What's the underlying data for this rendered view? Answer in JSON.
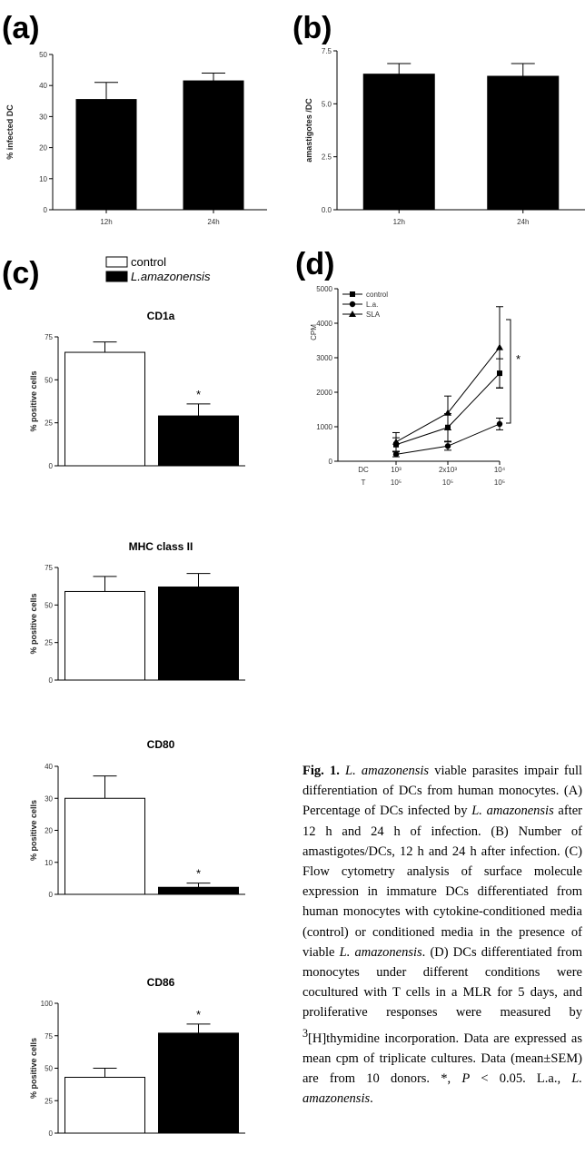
{
  "panels": {
    "a": {
      "letter": "(a)"
    },
    "b": {
      "letter": "(b)"
    },
    "c": {
      "letter": "(c)"
    },
    "d": {
      "letter": "(d)"
    }
  },
  "legend_c": {
    "control": "control",
    "treated": "L.amazonensis"
  },
  "chart_data": [
    {
      "id": "a",
      "type": "bar",
      "title": "",
      "xlabel": "",
      "ylabel": "% infected DC",
      "categories": [
        "12h",
        "24h"
      ],
      "values": [
        35.5,
        41.5
      ],
      "errors": [
        5.5,
        2.5
      ],
      "ylim": [
        0,
        50
      ],
      "yticks": [
        "0",
        "10",
        "20",
        "30",
        "40",
        "50"
      ],
      "bar_colors": [
        "#000000",
        "#000000"
      ],
      "stars": [
        "",
        ""
      ]
    },
    {
      "id": "b",
      "type": "bar",
      "title": "",
      "xlabel": "",
      "ylabel": "amastigotes /DC",
      "categories": [
        "12h",
        "24h"
      ],
      "values": [
        6.4,
        6.3
      ],
      "errors": [
        0.5,
        0.6
      ],
      "ylim": [
        0,
        7.5
      ],
      "yticks": [
        "0.0",
        "2.5",
        "5.0",
        "7.5"
      ],
      "bar_colors": [
        "#000000",
        "#000000"
      ],
      "stars": [
        "",
        ""
      ]
    },
    {
      "id": "c1",
      "type": "bar",
      "title": "CD1a",
      "xlabel": "",
      "ylabel": "% positive cells",
      "categories": [
        "control",
        "L.amazonensis"
      ],
      "values": [
        66,
        29
      ],
      "errors": [
        6,
        7
      ],
      "ylim": [
        0,
        75
      ],
      "yticks": [
        "0",
        "25",
        "50",
        "75"
      ],
      "bar_colors": [
        "#ffffff",
        "#000000"
      ],
      "stars": [
        "",
        "*"
      ]
    },
    {
      "id": "c2",
      "type": "bar",
      "title": "MHC class II",
      "xlabel": "",
      "ylabel": "% positive cells",
      "categories": [
        "control",
        "L.amazonensis"
      ],
      "values": [
        59,
        62
      ],
      "errors": [
        10,
        9
      ],
      "ylim": [
        0,
        75
      ],
      "yticks": [
        "0",
        "25",
        "50",
        "75"
      ],
      "bar_colors": [
        "#ffffff",
        "#000000"
      ],
      "stars": [
        "",
        ""
      ]
    },
    {
      "id": "c3",
      "type": "bar",
      "title": "CD80",
      "xlabel": "",
      "ylabel": "% positive cells",
      "categories": [
        "control",
        "L.amazonensis"
      ],
      "values": [
        30,
        2.2
      ],
      "errors": [
        7,
        1.3
      ],
      "ylim": [
        0,
        40
      ],
      "yticks": [
        "0",
        "10",
        "20",
        "30",
        "40"
      ],
      "bar_colors": [
        "#ffffff",
        "#000000"
      ],
      "stars": [
        "",
        "*"
      ]
    },
    {
      "id": "c4",
      "type": "bar",
      "title": "CD86",
      "xlabel": "",
      "ylabel": "% positive cells",
      "categories": [
        "control",
        "L.amazonensis"
      ],
      "values": [
        43,
        77
      ],
      "errors": [
        7,
        7
      ],
      "ylim": [
        0,
        100
      ],
      "yticks": [
        "0",
        "25",
        "50",
        "75",
        "100"
      ],
      "bar_colors": [
        "#ffffff",
        "#000000"
      ],
      "stars": [
        "",
        "*"
      ]
    },
    {
      "id": "d",
      "type": "line",
      "title": "",
      "xlabel": "",
      "ylabel": "CPM",
      "x_dc": [
        "10³",
        "2x10³",
        "10⁴"
      ],
      "x_t": [
        "10⁵",
        "10⁵",
        "10⁵"
      ],
      "x_row_labels": [
        "DC",
        "T"
      ],
      "ylim": [
        0,
        5000
      ],
      "yticks": [
        "0",
        "1000",
        "2000",
        "3000",
        "4000",
        "5000"
      ],
      "legend": "top-left",
      "series": [
        {
          "name": "control",
          "marker": "square",
          "values": [
            480,
            980,
            2550
          ],
          "errors": [
            200,
            400,
            420
          ]
        },
        {
          "name": "L.a.",
          "marker": "circle",
          "values": [
            200,
            440,
            1080
          ],
          "errors": [
            70,
            120,
            170
          ]
        },
        {
          "name": "SLA",
          "marker": "triangle",
          "values": [
            560,
            1400,
            3300
          ],
          "errors": [
            270,
            490,
            1180
          ]
        }
      ],
      "significance": "*"
    }
  ],
  "caption": {
    "fig": "Fig. 1.",
    "sp1": "L. amazonensis",
    "t1": " viable parasites impair full differentiation of DCs from human monocytes. (A) Percentage of DCs infected by ",
    "sp2": "L. amazonensis",
    "t2": " after 12 h and 24 h of infection. (B) Number of amastigotes/DCs, 12 h and 24 h after infection. (C) Flow cytometry analysis of surface molecule expression in immature DCs differentiated from human monocytes with cytokine-conditioned media (control) or conditioned media in the presence of viable ",
    "sp3": "L. amazonensis",
    "t3": ". (D) DCs differentiated from monocytes under different conditions were cocultured with T cells in a MLR for 5 days, and proliferative responses were measured by ",
    "sup3": "3",
    "t4": "[H]thymidine incorporation. Data are expressed as mean cpm of triplicate cultures. Data (mean±SEM) are from 10 donors. *, ",
    "p": "P",
    "t5": " < 0.05. L.a., ",
    "sp4": "L. amazonensis",
    "t6": "."
  }
}
